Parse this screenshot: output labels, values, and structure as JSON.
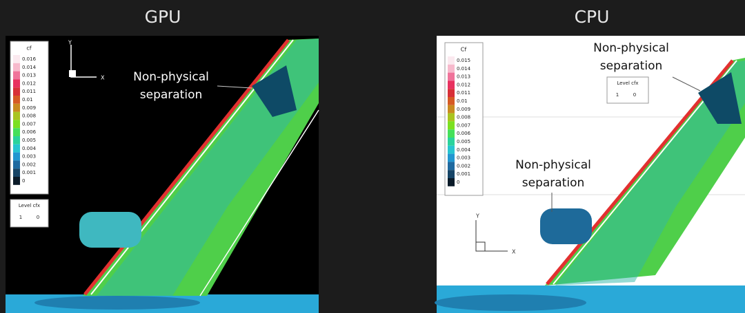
{
  "header": {
    "left_title": "GPU",
    "right_title": "CPU"
  },
  "panels": [
    {
      "legend": {
        "title": "cf",
        "levels": [
          "0.016",
          "0.014",
          "0.013",
          "0.012",
          "0.011",
          "0.01",
          "0.009",
          "0.008",
          "0.007",
          "0.006",
          "0.005",
          "0.004",
          "0.003",
          "0.002",
          "0.001",
          "0"
        ]
      },
      "level_box": {
        "title": "Level cfx",
        "values": [
          "1",
          "0"
        ]
      },
      "axes": {
        "y": "Y",
        "x": "X"
      },
      "annotations": [
        {
          "lines": [
            "Non-physical",
            "separation"
          ]
        }
      ]
    },
    {
      "legend": {
        "title": "Cf",
        "levels": [
          "0.015",
          "0.014",
          "0.013",
          "0.012",
          "0.011",
          "0.01",
          "0.009",
          "0.008",
          "0.007",
          "0.006",
          "0.005",
          "0.004",
          "0.003",
          "0.002",
          "0.001",
          "0"
        ]
      },
      "level_box": {
        "title": "Level cfx",
        "values": [
          "1",
          "0"
        ]
      },
      "axes": {
        "y": "Y",
        "x": "X"
      },
      "annotations": [
        {
          "lines": [
            "Non-physical",
            "separation"
          ]
        },
        {
          "lines": [
            "Non-physical",
            "separation"
          ]
        }
      ]
    }
  ]
}
